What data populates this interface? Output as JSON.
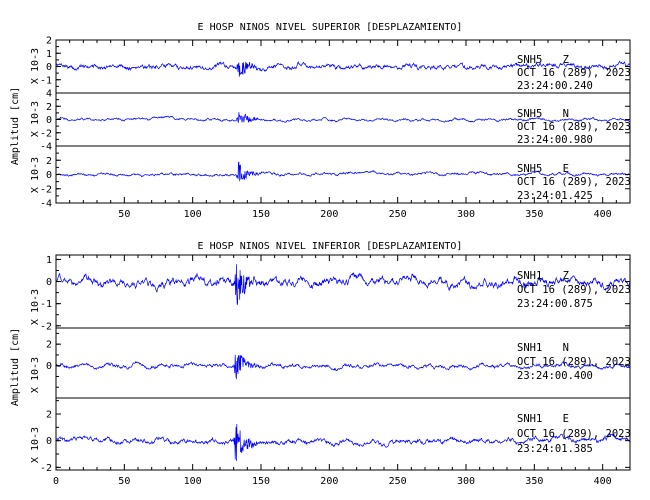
{
  "colors": {
    "trace": "#0000ff",
    "axis": "#000000",
    "background": "#ffffff"
  },
  "chart_data": [
    {
      "type": "line",
      "title": "E HOSP NINOS NIVEL SUPERIOR [DESPLAZAMIENTO]",
      "ylabel": "Amplitud [cm]",
      "xlim": [
        0,
        420
      ],
      "x_ticks": [
        50,
        100,
        150,
        200,
        250,
        300,
        350,
        400
      ],
      "panels": [
        {
          "station": "SNH5",
          "component": "Z",
          "date": "OCT 16 (289), 2023",
          "time": "23:24:00.240",
          "scale": "X 10-3",
          "ylim": [
            -2,
            2
          ],
          "y_ticks": [
            -1,
            0,
            1,
            2
          ],
          "y_tick_labels": [
            "-1",
            "0",
            "1",
            "2"
          ],
          "event_start": 132,
          "event_peak": 1.3,
          "background_level": 0.45
        },
        {
          "station": "SNH5",
          "component": "N",
          "date": "OCT 16 (289), 2023",
          "time": "23:24:00.980",
          "scale": "X 10-3",
          "ylim": [
            -4,
            4
          ],
          "y_ticks": [
            -4,
            -2,
            0,
            2,
            4
          ],
          "y_tick_labels": [
            "-4",
            "-2",
            "0",
            "2",
            "4"
          ],
          "event_start": 132,
          "event_peak": 1.8,
          "background_level": 0.45
        },
        {
          "station": "SNH5",
          "component": "E",
          "date": "OCT 16 (289), 2023",
          "time": "23:24:01.425",
          "scale": "X 10-3",
          "ylim": [
            -4,
            4
          ],
          "y_ticks": [
            -4,
            -2,
            0,
            2
          ],
          "y_tick_labels": [
            "-4",
            "-2",
            "0",
            "2"
          ],
          "event_start": 132,
          "event_peak": 2.2,
          "background_level": 0.45
        }
      ]
    },
    {
      "type": "line",
      "title": "E HOSP NINOS NIVEL INFERIOR [DESPLAZAMIENTO]",
      "ylabel": "Amplitud [cm]",
      "xlim": [
        0,
        420
      ],
      "x_ticks": [
        0,
        50,
        100,
        150,
        200,
        250,
        300,
        350,
        400
      ],
      "panels": [
        {
          "station": "SNH1",
          "component": "Z",
          "date": "OCT 16 (289), 2023",
          "time": "23:24:00.875",
          "scale": "X 10-3",
          "ylim": [
            -2.1,
            1.2
          ],
          "y_ticks": [
            -2,
            -1,
            0,
            1
          ],
          "y_tick_labels": [
            "-2",
            "-1",
            "0",
            "1"
          ],
          "event_start": 130,
          "event_peak": 1.5,
          "background_level": 0.45
        },
        {
          "station": "SNH1",
          "component": "N",
          "date": "OCT 16 (289), 2023",
          "time": "23:24:00.400",
          "scale": "X 10-3",
          "ylim": [
            -3,
            3.5
          ],
          "y_ticks": [
            0,
            2
          ],
          "y_tick_labels": [
            "0",
            "2"
          ],
          "event_start": 130,
          "event_peak": 2.0,
          "background_level": 0.45
        },
        {
          "station": "SNH1",
          "component": "E",
          "date": "OCT 16 (289), 2023",
          "time": "23:24:01.385",
          "scale": "X 10-3",
          "ylim": [
            -2.2,
            3.2
          ],
          "y_ticks": [
            -2,
            0,
            2
          ],
          "y_tick_labels": [
            "-2",
            "0",
            "2"
          ],
          "event_start": 130,
          "event_peak": 2.3,
          "background_level": 0.45
        }
      ]
    }
  ]
}
